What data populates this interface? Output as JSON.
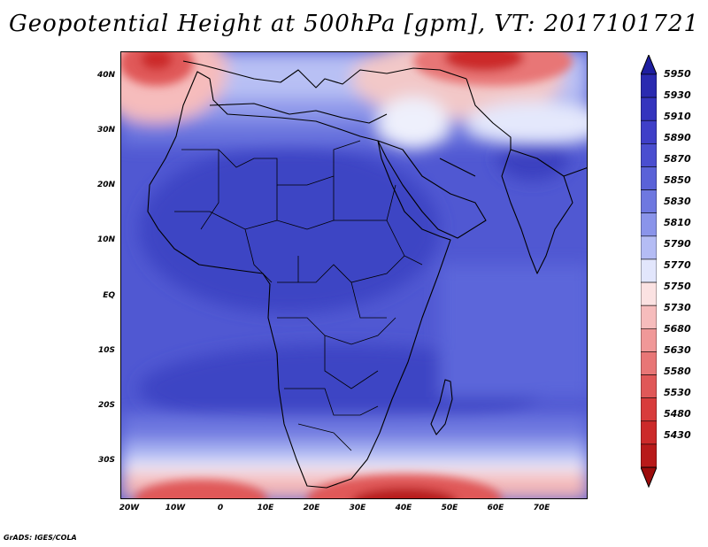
{
  "title": "Geopotential Height at 500hPa [gpm], VT: 2017101721",
  "footer": "GrADS: IGES/COLA",
  "axes": {
    "lat_labels": [
      "40N",
      "30N",
      "20N",
      "10N",
      "EQ",
      "10S",
      "20S",
      "30S"
    ],
    "lon_labels": [
      "20W",
      "10W",
      "0",
      "10E",
      "20E",
      "30E",
      "40E",
      "50E",
      "60E",
      "70E"
    ]
  },
  "colorbar": {
    "levels": [
      "5950",
      "5930",
      "5910",
      "5890",
      "5870",
      "5850",
      "5830",
      "5810",
      "5790",
      "5770",
      "5750",
      "5730",
      "5680",
      "5630",
      "5580",
      "5530",
      "5480",
      "5430"
    ],
    "colors": [
      "#1e1ea0",
      "#2a2ab0",
      "#3434be",
      "#3f3fc8",
      "#4a4ed0",
      "#5a62d8",
      "#6e78e0",
      "#8a94ea",
      "#b4bcf4",
      "#e2e6fc",
      "#fbe2e2",
      "#f6bcbc",
      "#f09898",
      "#e87676",
      "#e05858",
      "#d83c3c",
      "#cc2a2a",
      "#b81a1a",
      "#9c0c0c"
    ]
  },
  "chart_data": {
    "type": "heatmap",
    "variable": "Geopotential Height at 500hPa",
    "units": "gpm",
    "valid_time": "2017101721",
    "lon_range": [
      -23,
      80
    ],
    "lat_range": [
      -37,
      45
    ],
    "contour_levels": [
      5430,
      5480,
      5530,
      5580,
      5630,
      5680,
      5730,
      5750,
      5770,
      5790,
      5810,
      5830,
      5850,
      5870,
      5890,
      5910,
      5930,
      5950
    ],
    "features": [
      {
        "name": "trough",
        "lon": -12,
        "lat": 42,
        "value_approx": 5530
      },
      {
        "name": "trough",
        "lon": 60,
        "lat": 42,
        "value_approx": 5480
      },
      {
        "name": "trough",
        "lon": 40,
        "lat": -37,
        "value_approx": 5480
      },
      {
        "name": "trough",
        "lon": 0,
        "lat": -37,
        "value_approx": 5580
      },
      {
        "name": "ridge",
        "lon": 15,
        "lat": 10,
        "value_approx": 5890
      },
      {
        "name": "ridge",
        "lon": 70,
        "lat": 22,
        "value_approx": 5890
      },
      {
        "name": "ridge",
        "lon": 25,
        "lat": -17,
        "value_approx": 5890
      }
    ]
  }
}
